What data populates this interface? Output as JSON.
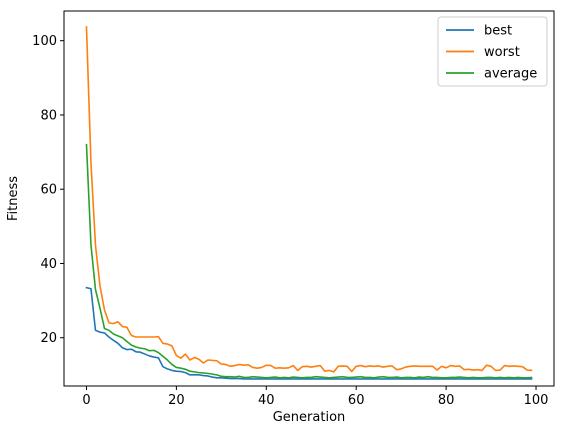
{
  "chart_data": {
    "type": "line",
    "xlabel": "Generation",
    "ylabel": "Fitness",
    "xlim": [
      -5,
      104
    ],
    "ylim": [
      7,
      108
    ],
    "xticks": [
      0,
      20,
      40,
      60,
      80,
      100
    ],
    "yticks": [
      20,
      40,
      60,
      80,
      100
    ],
    "grid": false,
    "legend_position": "top-right",
    "x": [
      0,
      1,
      2,
      3,
      4,
      5,
      6,
      7,
      8,
      9,
      10,
      11,
      12,
      13,
      14,
      15,
      16,
      17,
      18,
      19,
      20,
      21,
      22,
      23,
      24,
      25,
      26,
      27,
      28,
      29,
      30,
      31,
      32,
      33,
      34,
      35,
      36,
      37,
      38,
      39,
      40,
      41,
      42,
      43,
      44,
      45,
      46,
      47,
      48,
      49,
      50,
      51,
      52,
      53,
      54,
      55,
      56,
      57,
      58,
      59,
      60,
      61,
      62,
      63,
      64,
      65,
      66,
      67,
      68,
      69,
      70,
      71,
      72,
      73,
      74,
      75,
      76,
      77,
      78,
      79,
      80,
      81,
      82,
      83,
      84,
      85,
      86,
      87,
      88,
      89,
      90,
      91,
      92,
      93,
      94,
      95,
      96,
      97,
      98,
      99
    ],
    "series": [
      {
        "name": "best",
        "color": "#1f77b4",
        "values": [
          33.5,
          33.2,
          22,
          21.5,
          21.3,
          20.2,
          19.3,
          18.5,
          17.3,
          16.8,
          16.9,
          16.2,
          16.1,
          15.6,
          15.1,
          14.8,
          14.6,
          12.2,
          11.6,
          11.2,
          11,
          10.9,
          10.6,
          10,
          10,
          10,
          9.8,
          9.7,
          9.4,
          9.2,
          9.2,
          9.1,
          9,
          9,
          9,
          8.9,
          8.9,
          8.9,
          8.9,
          8.9,
          8.9,
          8.9,
          8.9,
          8.9,
          8.9,
          8.9,
          8.9,
          8.9,
          8.9,
          8.9,
          8.9,
          8.9,
          8.9,
          8.9,
          8.9,
          8.9,
          8.9,
          8.9,
          8.9,
          8.9,
          8.9,
          8.9,
          8.9,
          8.9,
          8.9,
          8.9,
          8.9,
          8.9,
          8.9,
          8.9,
          8.9,
          8.9,
          8.9,
          8.9,
          8.9,
          8.9,
          8.9,
          8.9,
          8.9,
          8.9,
          8.9,
          8.9,
          8.9,
          8.9,
          8.9,
          8.9,
          8.9,
          8.9,
          8.9,
          8.9,
          8.9,
          8.9,
          8.9,
          8.9,
          8.9,
          8.9,
          8.9,
          8.9,
          8.9,
          8.9
        ]
      },
      {
        "name": "worst",
        "color": "#ff7f0e",
        "values": [
          103.7,
          67,
          45,
          34,
          27.5,
          24,
          23.8,
          24.3,
          23,
          22.8,
          20.6,
          20.2,
          20.2,
          20.2,
          20.2,
          20.2,
          20.3,
          18.5,
          18.3,
          17.8,
          15.2,
          14.5,
          15.6,
          14,
          14.7,
          14.2,
          13.2,
          14,
          13.9,
          13.8,
          12.9,
          12.8,
          12.3,
          12.5,
          12.8,
          12.6,
          12.7,
          12,
          11.8,
          12,
          12.6,
          12.5,
          11.8,
          11.9,
          11.8,
          11.9,
          12.5,
          11.2,
          12.2,
          12.3,
          12.1,
          12.3,
          12.5,
          11,
          11.2,
          10.8,
          12.3,
          12.4,
          12.3,
          10.9,
          12.3,
          12.5,
          12.2,
          12.4,
          12.3,
          12.4,
          12.1,
          12.3,
          12.4,
          11.4,
          11.6,
          12.1,
          12.3,
          12.4,
          12.3,
          12.3,
          12.3,
          12.3,
          11.3,
          12.3,
          11.9,
          12.5,
          12.3,
          12.4,
          11.4,
          11.5,
          11.3,
          11.4,
          11.2,
          12.6,
          12.3,
          11.2,
          11.3,
          12.5,
          12.3,
          12.4,
          12.3,
          12.2,
          11.3,
          11.2
        ]
      },
      {
        "name": "average",
        "color": "#2ca02c",
        "values": [
          72,
          45,
          33,
          28,
          22.5,
          22,
          21,
          20.5,
          20,
          19,
          18,
          17.5,
          17.2,
          17,
          16.5,
          16.6,
          16,
          15,
          14,
          12.8,
          12,
          11.8,
          11.5,
          11,
          10.8,
          10.6,
          10.5,
          10.4,
          10.2,
          10,
          9.6,
          9.5,
          9.5,
          9.4,
          9.6,
          9.3,
          9.3,
          9.5,
          9.4,
          9.3,
          9.2,
          9.3,
          9.4,
          9.2,
          9.3,
          9.2,
          9.4,
          9.3,
          9.2,
          9.3,
          9.3,
          9.5,
          9.4,
          9.3,
          9.2,
          9.3,
          9.4,
          9.5,
          9.3,
          9.3,
          9.4,
          9.5,
          9.3,
          9.3,
          9.2,
          9.4,
          9.5,
          9.3,
          9.3,
          9.4,
          9.2,
          9.3,
          9.3,
          9.2,
          9.4,
          9.3,
          9.5,
          9.3,
          9.3,
          9.2,
          9.2,
          9.3,
          9.3,
          9.4,
          9.3,
          9.2,
          9.3,
          9.2,
          9.2,
          9.3,
          9.3,
          9.2,
          9.3,
          9.2,
          9.3,
          9.2,
          9.3,
          9.2,
          9.2,
          9.3
        ]
      }
    ]
  }
}
